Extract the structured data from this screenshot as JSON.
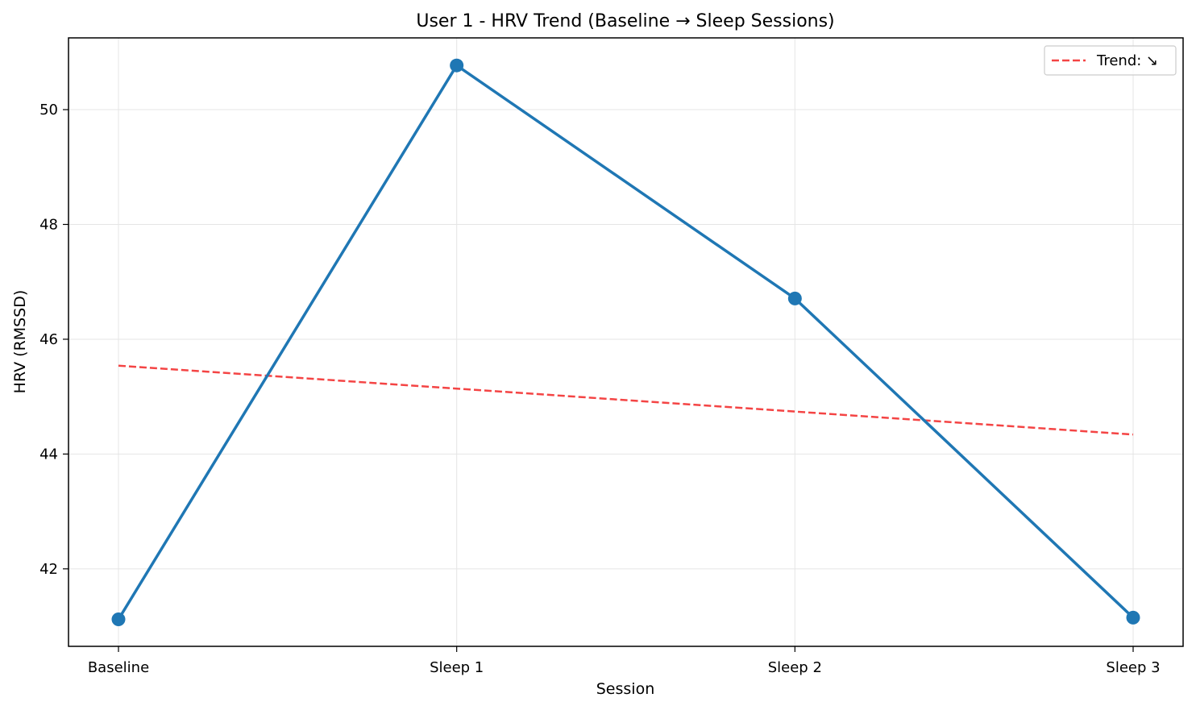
{
  "chart_data": {
    "type": "line",
    "title": "User 1 - HRV Trend (Baseline → Sleep Sessions)",
    "xlabel": "Session",
    "ylabel": "HRV (RMSSD)",
    "categories": [
      "Baseline",
      "Sleep 1",
      "Sleep 2",
      "Sleep 3"
    ],
    "ylim": [
      40.65,
      51.25
    ],
    "yticks": [
      42,
      44,
      46,
      48,
      50
    ],
    "grid": true,
    "legend_position": "top-right",
    "series": [
      {
        "values": [
          41.12,
          50.77,
          46.71,
          41.15
        ],
        "color": "#1f77b4",
        "style": "solid",
        "markers": true
      },
      {
        "name": "Trend: ↘",
        "values": [
          45.54,
          45.14,
          44.74,
          44.34
        ],
        "color": "#f44444",
        "style": "dashed",
        "markers": false
      }
    ]
  }
}
